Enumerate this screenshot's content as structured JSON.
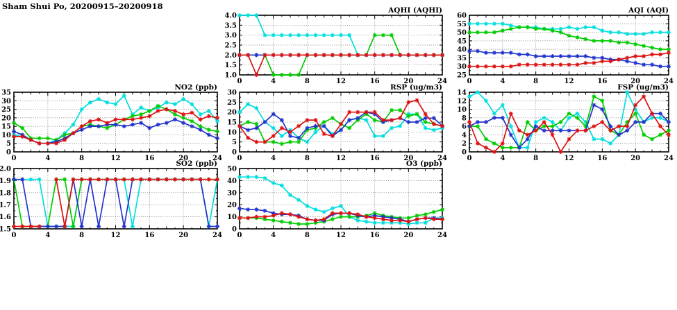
{
  "page_title": "Sham Shui Po, 20200915–20200918",
  "colors": {
    "cyan": "#00dede",
    "green": "#00cc00",
    "blue": "#2233cc",
    "red": "#dd1111"
  },
  "chart_data": [
    {
      "id": "aqhi",
      "type": "line",
      "title": "AQHI (AQHI)",
      "xlim": [
        0,
        24
      ],
      "x_ticks": [
        0,
        4,
        8,
        12,
        16,
        20,
        24
      ],
      "ylim": [
        1.0,
        4.0
      ],
      "y_step": 0.5,
      "y_decimals": 1,
      "grid": true,
      "series": [
        {
          "name": "cyan",
          "values": [
            4,
            4,
            4,
            3,
            3,
            3,
            3,
            3,
            3,
            3,
            3,
            3,
            3,
            3,
            2,
            2,
            2,
            2,
            2,
            2,
            2,
            2,
            2,
            2,
            2
          ]
        },
        {
          "name": "green",
          "values": [
            2,
            2,
            2,
            2,
            1,
            1,
            1,
            1,
            2,
            2,
            2,
            2,
            2,
            2,
            2,
            2,
            3,
            3,
            3,
            2,
            2,
            2,
            2,
            2,
            2
          ]
        },
        {
          "name": "blue",
          "values": [
            2,
            2,
            2,
            2,
            2,
            2,
            2,
            2,
            2,
            2,
            2,
            2,
            2,
            2,
            2,
            2,
            2,
            2,
            2,
            2,
            2,
            2,
            2,
            2,
            2
          ]
        },
        {
          "name": "red",
          "values": [
            2,
            2,
            1,
            2,
            2,
            2,
            2,
            2,
            2,
            2,
            2,
            2,
            2,
            2,
            2,
            2,
            2,
            2,
            2,
            2,
            2,
            2,
            2,
            2,
            2
          ]
        }
      ]
    },
    {
      "id": "aqi",
      "type": "line",
      "title": "AQI (AQI)",
      "xlim": [
        0,
        24
      ],
      "x_ticks": [
        0,
        4,
        8,
        12,
        16,
        20,
        24
      ],
      "ylim": [
        25,
        60
      ],
      "y_step": 5,
      "y_decimals": 0,
      "grid": true,
      "series": [
        {
          "name": "cyan",
          "values": [
            55,
            55,
            55,
            55,
            55,
            54,
            53,
            53,
            53,
            52,
            52,
            52,
            53,
            52,
            53,
            53,
            51,
            50,
            50,
            49,
            49,
            49,
            50,
            50,
            50
          ]
        },
        {
          "name": "green",
          "values": [
            50,
            50,
            50,
            50,
            51,
            52,
            53,
            53,
            52,
            52,
            51,
            50,
            48,
            47,
            46,
            45,
            45,
            45,
            44,
            44,
            43,
            42,
            41,
            40,
            40
          ]
        },
        {
          "name": "blue",
          "values": [
            39,
            39,
            38,
            38,
            38,
            38,
            37,
            37,
            36,
            36,
            36,
            36,
            36,
            36,
            36,
            35,
            35,
            34,
            34,
            33,
            32,
            31,
            31,
            30,
            30
          ]
        },
        {
          "name": "red",
          "values": [
            30,
            30,
            30,
            30,
            30,
            30,
            31,
            31,
            31,
            31,
            31,
            31,
            31,
            31,
            32,
            32,
            33,
            33,
            34,
            35,
            36,
            36,
            37,
            37,
            38
          ]
        }
      ]
    },
    {
      "id": "no2",
      "type": "line",
      "title": "NO2 (ppb)",
      "xlim": [
        0,
        24
      ],
      "x_ticks": [
        0,
        4,
        8,
        12,
        16,
        20,
        24
      ],
      "ylim": [
        0,
        35
      ],
      "y_step": 5,
      "y_decimals": 0,
      "grid": true,
      "series": [
        {
          "name": "cyan",
          "values": [
            10,
            9,
            7,
            5,
            5,
            7,
            11,
            16,
            25,
            29,
            31,
            29,
            28,
            33,
            22,
            26,
            24,
            26,
            29,
            28,
            31,
            28,
            22,
            24,
            18
          ]
        },
        {
          "name": "green",
          "values": [
            17,
            14,
            8,
            8,
            8,
            7,
            10,
            11,
            15,
            16,
            15,
            14,
            16,
            19,
            21,
            22,
            24,
            27,
            25,
            22,
            20,
            18,
            15,
            13,
            12
          ]
        },
        {
          "name": "blue",
          "values": [
            12,
            10,
            7,
            5,
            5,
            6,
            8,
            11,
            13,
            15,
            15,
            16,
            16,
            15,
            16,
            17,
            14,
            16,
            17,
            19,
            17,
            15,
            13,
            10,
            8
          ]
        },
        {
          "name": "red",
          "values": [
            9,
            9,
            7,
            5,
            5,
            5,
            7,
            11,
            15,
            18,
            19,
            17,
            19,
            19,
            19,
            20,
            21,
            24,
            25,
            24,
            22,
            23,
            19,
            21,
            20
          ]
        }
      ]
    },
    {
      "id": "rsp",
      "type": "line",
      "title": "RSP (ug/m3)",
      "xlim": [
        0,
        24
      ],
      "x_ticks": [
        0,
        4,
        8,
        12,
        16,
        20,
        24
      ],
      "ylim": [
        0,
        30
      ],
      "y_step": 5,
      "y_decimals": 0,
      "grid": true,
      "series": [
        {
          "name": "cyan",
          "values": [
            20,
            24,
            22,
            15,
            12,
            8,
            11,
            7,
            5,
            10,
            13,
            9,
            11,
            16,
            17,
            16,
            8,
            8,
            12,
            13,
            19,
            19,
            12,
            11,
            12
          ]
        },
        {
          "name": "green",
          "values": [
            13,
            15,
            14,
            5,
            5,
            4,
            5,
            5,
            11,
            12,
            15,
            17,
            14,
            12,
            16,
            19,
            16,
            15,
            21,
            21,
            18,
            19,
            15,
            14,
            13
          ]
        },
        {
          "name": "blue",
          "values": [
            13,
            11,
            12,
            15,
            19,
            16,
            8,
            7,
            12,
            13,
            13,
            8,
            11,
            16,
            17,
            20,
            19,
            15,
            16,
            17,
            15,
            15,
            17,
            17,
            13
          ]
        },
        {
          "name": "red",
          "values": [
            13,
            7,
            5,
            5,
            8,
            12,
            10,
            13,
            16,
            16,
            9,
            8,
            14,
            20,
            20,
            20,
            20,
            16,
            16,
            17,
            25,
            26,
            19,
            14,
            13
          ]
        }
      ]
    },
    {
      "id": "fsp",
      "type": "line",
      "title": "FSP (ug/m3)",
      "xlim": [
        0,
        24
      ],
      "x_ticks": [
        0,
        4,
        8,
        12,
        16,
        20,
        24
      ],
      "ylim": [
        0,
        14
      ],
      "y_step": 2,
      "y_decimals": 0,
      "grid": true,
      "series": [
        {
          "name": "cyan",
          "values": [
            13,
            14,
            12,
            9,
            11,
            6,
            1,
            1,
            7,
            8,
            7,
            5,
            8,
            9,
            7,
            3,
            3,
            2,
            4,
            14,
            10,
            7,
            8,
            8,
            7
          ]
        },
        {
          "name": "green",
          "values": [
            6,
            6,
            3,
            2,
            1,
            1,
            1,
            7,
            5,
            6,
            6,
            7,
            9,
            8,
            6,
            13,
            12,
            5,
            4,
            7,
            9,
            4,
            3,
            4,
            5
          ]
        },
        {
          "name": "blue",
          "values": [
            6,
            7,
            7,
            8,
            8,
            4,
            1,
            3,
            6,
            5,
            5,
            5,
            5,
            5,
            5,
            11,
            10,
            6,
            4,
            5,
            7,
            7,
            9,
            9,
            7
          ]
        },
        {
          "name": "red",
          "values": [
            7,
            2,
            1,
            0,
            2,
            9,
            5,
            4,
            5,
            7,
            4,
            0,
            3,
            5,
            5,
            6,
            7,
            5,
            6,
            6,
            11,
            13,
            9,
            6,
            4
          ]
        }
      ]
    },
    {
      "id": "so2",
      "type": "line",
      "title": "SO2 (ppb)",
      "xlim": [
        0,
        24
      ],
      "x_ticks": [
        0,
        4,
        8,
        12,
        16,
        20,
        24
      ],
      "ylim": [
        1.5,
        2.0
      ],
      "y_step": 0.1,
      "y_decimals": 1,
      "grid": true,
      "series": [
        {
          "name": "cyan",
          "values": [
            1.91,
            1.91,
            1.91,
            1.91,
            1.52,
            1.52,
            1.52,
            1.52,
            1.91,
            1.91,
            1.91,
            1.91,
            1.91,
            1.91,
            1.52,
            1.91,
            1.91,
            1.91,
            1.91,
            1.91,
            1.91,
            1.91,
            1.91,
            1.52,
            1.91
          ]
        },
        {
          "name": "green",
          "values": [
            1.91,
            1.52,
            1.52,
            1.52,
            1.52,
            1.91,
            1.91,
            1.52,
            1.91,
            1.91,
            1.91,
            1.91,
            1.91,
            1.91,
            1.91,
            1.91,
            1.91,
            1.91,
            1.91,
            1.91,
            1.91,
            1.91,
            1.91,
            1.91,
            1.91
          ]
        },
        {
          "name": "blue",
          "values": [
            1.91,
            1.91,
            1.52,
            1.52,
            1.52,
            1.52,
            1.52,
            1.91,
            1.52,
            1.91,
            1.52,
            1.91,
            1.91,
            1.52,
            1.91,
            1.91,
            1.91,
            1.91,
            1.91,
            1.91,
            1.91,
            1.91,
            1.91,
            1.52,
            1.52
          ]
        },
        {
          "name": "red",
          "values": [
            1.52,
            1.52,
            1.52,
            1.52,
            null,
            1.91,
            1.52,
            1.91,
            1.91,
            1.91,
            1.91,
            1.91,
            1.91,
            1.91,
            1.91,
            1.91,
            1.91,
            1.91,
            1.91,
            1.91,
            1.91,
            1.91,
            1.91,
            1.91,
            1.91
          ]
        }
      ]
    },
    {
      "id": "o3",
      "type": "line",
      "title": "O3 (ppb)",
      "xlim": [
        0,
        24
      ],
      "x_ticks": [
        0,
        4,
        8,
        12,
        16,
        20,
        24
      ],
      "ylim": [
        0,
        50
      ],
      "y_step": 10,
      "y_decimals": 0,
      "grid": true,
      "series": [
        {
          "name": "cyan",
          "values": [
            43,
            43,
            43,
            42,
            38,
            36,
            28,
            24,
            19,
            16,
            14,
            17,
            19,
            10,
            7,
            6,
            5,
            5,
            5,
            5,
            4,
            5,
            5,
            9,
            9
          ]
        },
        {
          "name": "green",
          "values": [
            9,
            9,
            9,
            8,
            7,
            6,
            5,
            4,
            4,
            5,
            6,
            8,
            10,
            10,
            10,
            11,
            13,
            11,
            10,
            9,
            9,
            11,
            12,
            14,
            16
          ]
        },
        {
          "name": "blue",
          "values": [
            17,
            16,
            16,
            15,
            13,
            12,
            12,
            11,
            8,
            7,
            7,
            12,
            13,
            13,
            11,
            10,
            11,
            10,
            9,
            8,
            6,
            8,
            9,
            9,
            8
          ]
        },
        {
          "name": "red",
          "values": [
            9,
            9,
            10,
            10,
            11,
            13,
            12,
            10,
            8,
            7,
            8,
            13,
            13,
            13,
            12,
            10,
            9,
            8,
            7,
            7,
            6,
            8,
            9,
            8,
            8
          ]
        }
      ]
    }
  ]
}
